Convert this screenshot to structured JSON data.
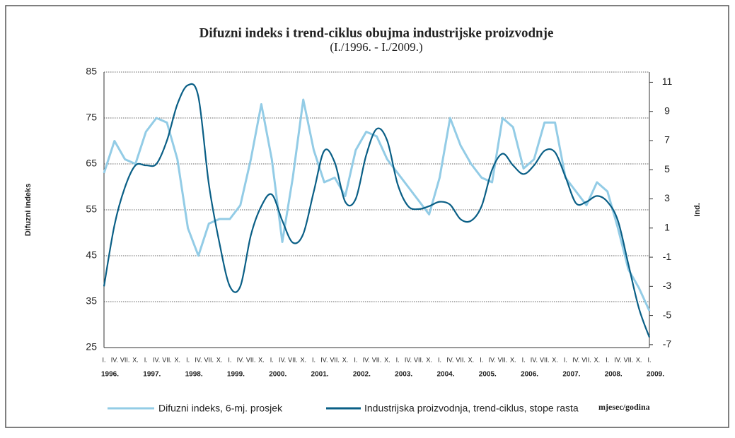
{
  "chart_data": {
    "type": "line",
    "title": "Difuzni indeks i trend-ciklus obujma industrijske proizvodnje",
    "subtitle": "(I./1996. - I./2009.)",
    "y_label": "Difuzni indeks",
    "y2_label": "Ind.",
    "x_label": "mjesec/godina",
    "categories": [
      "I.",
      "IV.",
      "VII.",
      "X.",
      "I.",
      "IV.",
      "VII.",
      "X.",
      "I.",
      "IV.",
      "VII.",
      "X.",
      "I.",
      "IV.",
      "VII.",
      "X.",
      "I.",
      "IV.",
      "VII.",
      "X.",
      "I.",
      "IV.",
      "VII.",
      "X.",
      "I.",
      "IV.",
      "VII.",
      "X.",
      "I.",
      "IV.",
      "VII.",
      "X.",
      "I.",
      "IV.",
      "VII.",
      "X.",
      "I.",
      "IV.",
      "VII.",
      "X.",
      "I.",
      "IV.",
      "VII.",
      "X.",
      "I.",
      "IV.",
      "VII.",
      "X.",
      "I.",
      "IV.",
      "VII.",
      "X.",
      "I."
    ],
    "year_labels": [
      "1996.",
      "1997.",
      "1998.",
      "1999.",
      "2000.",
      "2001.",
      "2002.",
      "2003.",
      "2004.",
      "2005.",
      "2006.",
      "2007.",
      "2008.",
      "2009."
    ],
    "series": [
      {
        "name": "Difuzni indeks, 6-mj. prosjek",
        "color": "#93cce6",
        "axis": "y",
        "values": [
          63,
          70,
          66,
          65,
          72,
          75,
          74,
          66,
          51,
          45,
          52,
          53,
          53,
          56,
          66,
          78,
          66,
          48,
          62,
          79,
          68,
          61,
          62,
          58,
          68,
          72,
          71,
          66,
          63,
          60,
          57,
          54,
          62,
          75,
          69,
          65,
          62,
          61,
          75,
          73,
          64,
          66,
          74,
          74,
          62,
          59,
          56,
          61,
          59,
          51,
          42,
          38,
          33
        ]
      },
      {
        "name": "Industrijska proizvodnja, trend-ciklus, stope rasta",
        "color": "#0a5f86",
        "axis": "y2",
        "values": [
          -3,
          1.2,
          3.8,
          5.3,
          5.3,
          5.4,
          7,
          9.5,
          10.8,
          10,
          4,
          0,
          -3,
          -3,
          0.5,
          2.5,
          3.3,
          1.5,
          0,
          0.6,
          3.5,
          6.3,
          5.5,
          2.8,
          3,
          6,
          7.8,
          7,
          4,
          2.5,
          2.3,
          2.5,
          2.8,
          2.6,
          1.6,
          1.5,
          2.5,
          5,
          6.1,
          5.3,
          4.7,
          5.3,
          6.3,
          6.2,
          4.5,
          2.7,
          2.8,
          3.2,
          2.8,
          1.5,
          -1.5,
          -4.5,
          -6.5
        ]
      }
    ],
    "ylim": [
      25,
      85
    ],
    "yticks": [
      25,
      35,
      45,
      55,
      65,
      75,
      85
    ],
    "y2lim": [
      -7.2,
      11.7
    ],
    "y2ticks": [
      -7,
      -5,
      -3,
      -1,
      1,
      3,
      5,
      7,
      9,
      11
    ],
    "grid": true,
    "legend": "bottom"
  }
}
